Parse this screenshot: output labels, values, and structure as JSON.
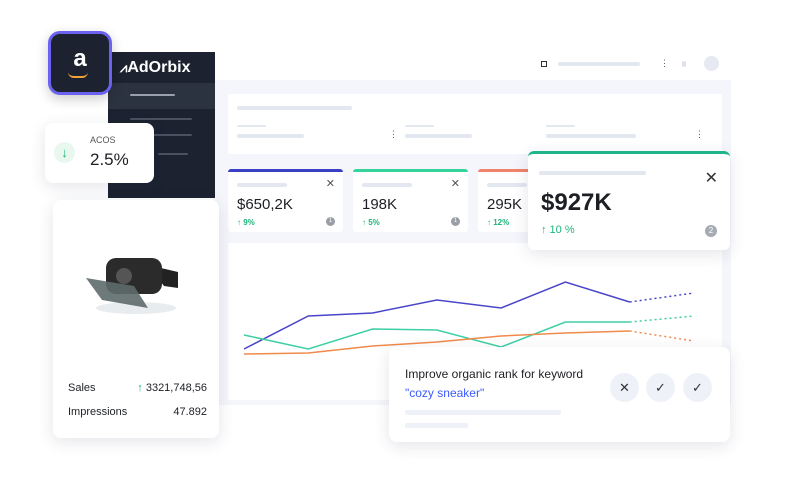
{
  "brand": {
    "logo_text": "AdOrbix",
    "amazon_glyph": "a"
  },
  "acos": {
    "label": "ACOS",
    "value": "2.5%",
    "trend": "down",
    "color": "#1fb47a"
  },
  "kpis": [
    {
      "value": "$650,2K",
      "change": "↑ 9%",
      "badge": "1",
      "accent": "#3b3fc4"
    },
    {
      "value": "198K",
      "change": "↑ 5%",
      "badge": "1",
      "accent": "#37d39c"
    },
    {
      "value": "295K",
      "change": "↑ 12%",
      "badge": "",
      "accent": "#f0836a"
    }
  ],
  "highlight_kpi": {
    "value": "$927K",
    "change": "↑ 10 %",
    "badge": "2",
    "accent": "#1fb48a"
  },
  "product": {
    "sales_label": "Sales",
    "sales_value": "3321,748,56",
    "impressions_label": "Impressions",
    "impressions_value": "47.892"
  },
  "suggestion": {
    "text": "Improve organic rank for keyword ",
    "keyword": "\"cozy sneaker\"",
    "reject": "✕",
    "accept": "✓",
    "accept2": "✓"
  },
  "chart_data": {
    "type": "line",
    "x": [
      1,
      2,
      3,
      4,
      5,
      6,
      7,
      8
    ],
    "projected_from_index": 6,
    "series": [
      {
        "color": "#4a45c8",
        "values": [
          51,
          84,
          87,
          100,
          92,
          118,
          98,
          107
        ]
      },
      {
        "color": "#3fcfa5",
        "values": [
          65,
          51,
          71,
          70,
          53,
          78,
          78,
          84
        ]
      },
      {
        "color": "#f08a4b",
        "values": [
          46,
          47,
          54,
          58,
          64,
          67,
          69,
          59
        ]
      }
    ],
    "ylim": [
      0,
      160
    ],
    "grid": false
  }
}
